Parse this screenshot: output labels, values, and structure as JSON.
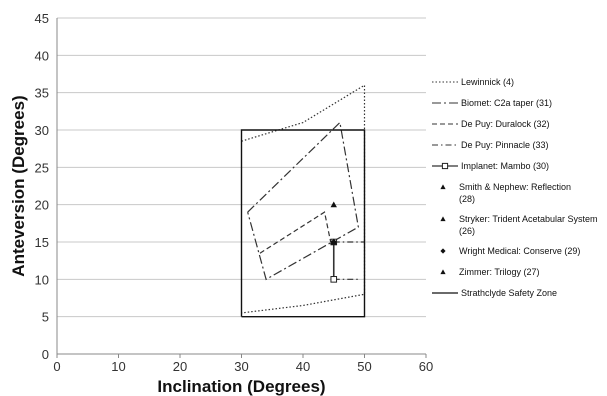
{
  "chart_data": {
    "type": "line",
    "xlabel": "Inclination (Degrees)",
    "ylabel": "Anteversion (Degrees)",
    "xlim": [
      0,
      60
    ],
    "ylim": [
      0,
      45
    ],
    "x_ticks": [
      "0",
      "10",
      "20",
      "30",
      "40",
      "50",
      "60"
    ],
    "y_ticks": [
      "0",
      "5",
      "10",
      "15",
      "20",
      "25",
      "30",
      "35",
      "40",
      "45"
    ],
    "grid": "horizontal",
    "legend_position": "right",
    "series": [
      {
        "name": "Lewinnick (4)",
        "style": "dotted",
        "marker": "none",
        "color": "#333333",
        "points": [
          [
            30,
            28.5
          ],
          [
            40,
            31
          ],
          [
            50,
            36
          ],
          [
            50,
            8
          ],
          [
            40,
            6.5
          ],
          [
            30,
            5.5
          ]
        ]
      },
      {
        "name": "Biomet: C2a taper (31)",
        "style": "long-dash-dot",
        "marker": "none",
        "color": "#333333",
        "points": [
          [
            31,
            19
          ],
          [
            46,
            31
          ],
          [
            49,
            17
          ],
          [
            34,
            10
          ],
          [
            31,
            19
          ]
        ]
      },
      {
        "name": "De Puy: Duralock (32)",
        "style": "dashed",
        "marker": "none",
        "color": "#333333",
        "points": [
          [
            33,
            13.5
          ],
          [
            43.5,
            19
          ],
          [
            44.5,
            15
          ]
        ]
      },
      {
        "name": "De Puy: Pinnacle (33)",
        "style": "dash-dot",
        "marker": "none",
        "color": "#333333",
        "points": [
          [
            45,
            15
          ],
          [
            50,
            15
          ]
        ]
      },
      {
        "name": "Implanet: Mambo (30)",
        "style": "solid",
        "marker": "square-open",
        "color": "#333333",
        "points": [
          [
            45,
            15
          ],
          [
            45,
            10
          ]
        ]
      },
      {
        "name": "Smith & Nephew: Reflection (28)",
        "style": "none",
        "marker": "triangle",
        "color": "#111111",
        "points": [
          [
            45,
            20
          ]
        ]
      },
      {
        "name": "Stryker: Trident Acetabular System (26)",
        "style": "none",
        "marker": "triangle",
        "color": "#111111",
        "points": [
          [
            45,
            15
          ]
        ]
      },
      {
        "name": "Wright Medical: Conserve (29)",
        "style": "none",
        "marker": "diamond",
        "color": "#111111",
        "points": [
          [
            45,
            15
          ]
        ]
      },
      {
        "name": "Zimmer: Trilogy (27)",
        "style": "none",
        "marker": "triangle",
        "color": "#111111",
        "points": [
          [
            45,
            15
          ]
        ]
      },
      {
        "name": "Strathclyde Safety Zone",
        "style": "solid",
        "marker": "none",
        "color": "#111111",
        "points": [
          [
            30,
            5
          ],
          [
            50,
            5
          ],
          [
            50,
            30
          ],
          [
            30,
            30
          ],
          [
            30,
            5
          ]
        ]
      }
    ],
    "extra_lines": [
      {
        "style": "dash-dot",
        "points": [
          [
            45,
            10
          ],
          [
            49,
            10
          ]
        ]
      }
    ]
  }
}
